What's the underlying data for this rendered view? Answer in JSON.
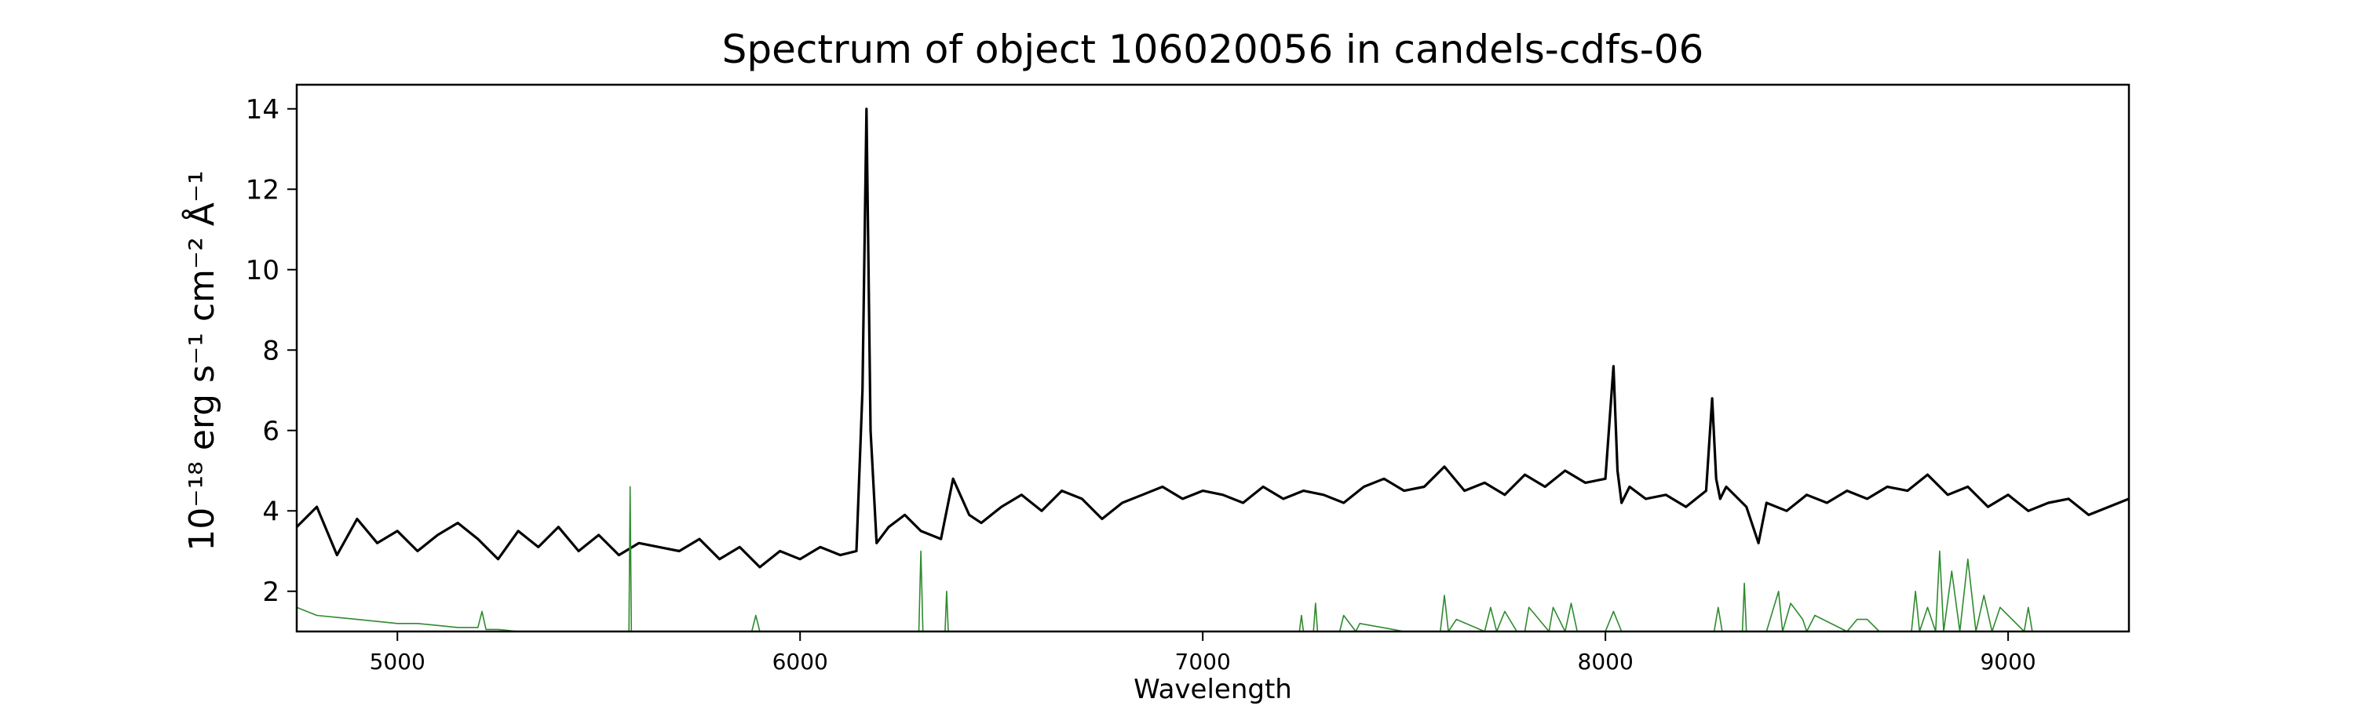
{
  "chart_data": {
    "type": "line",
    "title": "Spectrum of object 106020056 in candels-cdfs-06",
    "xlabel": "Wavelength",
    "ylabel": "10⁻¹⁸ erg s⁻¹ cm⁻² Å⁻¹",
    "xlim": [
      4750,
      9300
    ],
    "ylim": [
      1.0,
      14.6
    ],
    "x_ticks": [
      5000,
      6000,
      7000,
      8000,
      9000
    ],
    "y_ticks": [
      2,
      4,
      6,
      8,
      10,
      12,
      14
    ],
    "x_tick_labels": [
      "5000",
      "6000",
      "7000",
      "8000",
      "9000"
    ],
    "y_tick_labels": [
      "2",
      "4",
      "6",
      "8",
      "10",
      "12",
      "14"
    ],
    "grid": false,
    "series": [
      {
        "color": "#000000",
        "x": [
          4750,
          4800,
          4850,
          4900,
          4950,
          5000,
          5050,
          5100,
          5150,
          5200,
          5250,
          5300,
          5350,
          5400,
          5450,
          5500,
          5550,
          5600,
          5650,
          5700,
          5750,
          5800,
          5850,
          5900,
          5950,
          6000,
          6050,
          6100,
          6140,
          6155,
          6165,
          6175,
          6190,
          6220,
          6260,
          6300,
          6350,
          6380,
          6420,
          6450,
          6500,
          6550,
          6600,
          6650,
          6700,
          6750,
          6800,
          6850,
          6900,
          6950,
          7000,
          7050,
          7100,
          7150,
          7200,
          7250,
          7300,
          7350,
          7400,
          7450,
          7500,
          7550,
          7600,
          7650,
          7700,
          7750,
          7800,
          7850,
          7900,
          7950,
          8000,
          8020,
          8030,
          8040,
          8060,
          8100,
          8150,
          8200,
          8250,
          8265,
          8275,
          8285,
          8300,
          8350,
          8380,
          8400,
          8450,
          8500,
          8550,
          8600,
          8650,
          8700,
          8750,
          8800,
          8850,
          8900,
          8950,
          9000,
          9050,
          9100,
          9150,
          9200,
          9250,
          9300
        ],
        "y": [
          3.6,
          4.1,
          2.9,
          3.8,
          3.2,
          3.5,
          3.0,
          3.4,
          3.7,
          3.3,
          2.8,
          3.5,
          3.1,
          3.6,
          3.0,
          3.4,
          2.9,
          3.2,
          3.1,
          3.0,
          3.3,
          2.8,
          3.1,
          2.6,
          3.0,
          2.8,
          3.1,
          2.9,
          3.0,
          7.0,
          14.0,
          6.0,
          3.2,
          3.6,
          3.9,
          3.5,
          3.3,
          4.8,
          3.9,
          3.7,
          4.1,
          4.4,
          4.0,
          4.5,
          4.3,
          3.8,
          4.2,
          4.4,
          4.6,
          4.3,
          4.5,
          4.4,
          4.2,
          4.6,
          4.3,
          4.5,
          4.4,
          4.2,
          4.6,
          4.8,
          4.5,
          4.6,
          5.1,
          4.5,
          4.7,
          4.4,
          4.9,
          4.6,
          5.0,
          4.7,
          4.8,
          7.6,
          5.0,
          4.2,
          4.6,
          4.3,
          4.4,
          4.1,
          4.5,
          6.8,
          4.8,
          4.3,
          4.6,
          4.1,
          3.2,
          4.2,
          4.0,
          4.4,
          4.2,
          4.5,
          4.3,
          4.6,
          4.5,
          4.9,
          4.4,
          4.6,
          4.1,
          4.4,
          4.0,
          4.2,
          4.3,
          3.9,
          4.1,
          4.3
        ]
      },
      {
        "color": "#2e8b2e",
        "x": [
          4750,
          4800,
          4850,
          4900,
          4950,
          5000,
          5050,
          5100,
          5150,
          5200,
          5210,
          5220,
          5250,
          5300,
          5400,
          5575,
          5578,
          5581,
          5600,
          5880,
          5890,
          5900,
          6000,
          6295,
          6300,
          6305,
          6360,
          6364,
          6368,
          6500,
          6850,
          7000,
          7240,
          7245,
          7250,
          7275,
          7280,
          7285,
          7300,
          7340,
          7350,
          7380,
          7390,
          7500,
          7590,
          7600,
          7610,
          7630,
          7700,
          7715,
          7730,
          7750,
          7780,
          7800,
          7810,
          7860,
          7870,
          7900,
          7915,
          7930,
          8000,
          8020,
          8040,
          8100,
          8270,
          8280,
          8290,
          8340,
          8345,
          8350,
          8400,
          8430,
          8440,
          8460,
          8490,
          8500,
          8520,
          8600,
          8625,
          8650,
          8680,
          8700,
          8760,
          8770,
          8780,
          8800,
          8820,
          8830,
          8840,
          8860,
          8880,
          8900,
          8920,
          8940,
          8960,
          8980,
          9040,
          9050,
          9060,
          9300
        ],
        "y": [
          1.6,
          1.4,
          1.35,
          1.3,
          1.25,
          1.2,
          1.2,
          1.15,
          1.1,
          1.1,
          1.5,
          1.05,
          1.05,
          1.0,
          1.0,
          1.0,
          4.6,
          1.0,
          1.0,
          1.0,
          1.4,
          1.0,
          1.0,
          1.0,
          3.0,
          1.0,
          1.0,
          2.0,
          1.0,
          1.0,
          1.0,
          1.0,
          1.0,
          1.4,
          1.0,
          1.0,
          1.7,
          1.0,
          1.0,
          1.0,
          1.4,
          1.0,
          1.2,
          1.0,
          1.0,
          1.9,
          1.0,
          1.3,
          1.0,
          1.6,
          1.0,
          1.5,
          1.0,
          1.0,
          1.6,
          1.0,
          1.6,
          1.0,
          1.7,
          1.0,
          1.0,
          1.5,
          1.0,
          1.0,
          1.0,
          1.6,
          1.0,
          1.0,
          2.2,
          1.0,
          1.0,
          2.0,
          1.0,
          1.7,
          1.3,
          1.0,
          1.4,
          1.0,
          1.3,
          1.3,
          1.0,
          1.0,
          1.0,
          2.0,
          1.0,
          1.6,
          1.0,
          3.0,
          1.0,
          2.5,
          1.0,
          2.8,
          1.0,
          1.9,
          1.0,
          1.6,
          1.0,
          1.6,
          1.0,
          1.0
        ]
      }
    ]
  }
}
